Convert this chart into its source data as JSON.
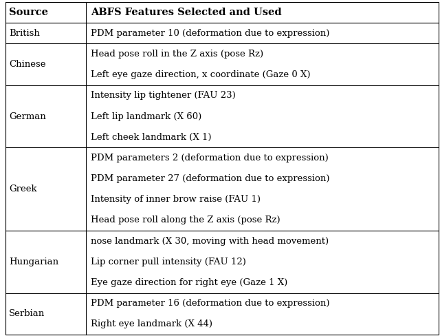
{
  "col1_header": "Source",
  "col2_header": "ABFS Features Selected and Used",
  "rows": [
    {
      "source": "British",
      "features": [
        "PDM parameter 10 (deformation due to expression)"
      ]
    },
    {
      "source": "Chinese",
      "features": [
        "Head pose roll in the Z axis (pose Rz)",
        "Left eye gaze direction, x coordinate (Gaze 0 X)"
      ]
    },
    {
      "source": "German",
      "features": [
        "Intensity lip tightener (FAU 23)",
        "Left lip landmark (X 60)",
        "Left cheek landmark (X 1)"
      ]
    },
    {
      "source": "Greek",
      "features": [
        "PDM parameters 2 (deformation due to expression)",
        "PDM parameter 27 (deformation due to expression)",
        "Intensity of inner brow raise (FAU 1)",
        "Head pose roll along the Z axis (pose Rz)"
      ]
    },
    {
      "source": "Hungarian",
      "features": [
        "nose landmark (X 30, moving with head movement)",
        "Lip corner pull intensity (FAU 12)",
        "Eye gaze direction for right eye (Gaze 1 X)"
      ]
    },
    {
      "source": "Serbian",
      "features": [
        "PDM parameter 16 (deformation due to expression)",
        "Right eye landmark (X 44)"
      ]
    }
  ],
  "bg_color": "#ffffff",
  "line_color": "#000000",
  "header_fontsize": 10.5,
  "body_fontsize": 9.5,
  "fig_width": 6.4,
  "fig_height": 4.88,
  "dpi": 100
}
